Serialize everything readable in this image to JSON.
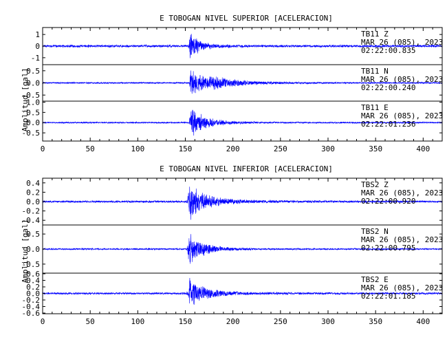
{
  "chart_data": [
    {
      "type": "line",
      "title": "E TOBOGAN NIVEL SUPERIOR [ACELERACION]",
      "ylabel": "Amplitud [gal]",
      "xlabel": "",
      "xlim": [
        0,
        420
      ],
      "x_ticks": [
        0,
        50,
        100,
        150,
        200,
        250,
        300,
        350,
        400
      ],
      "line_color": "#0000ff",
      "grid": false,
      "series": [
        {
          "name": "TB11   Z",
          "date": "MAR 26 (085), 2023",
          "time": "02:22:00.835",
          "ylim": [
            -1.6,
            1.6
          ],
          "y_ticks": [
            -1,
            0,
            1
          ],
          "noise": 0.12,
          "events": [
            {
              "t0": 154,
              "amp": 1.3,
              "decay": 7,
              "rise": 1.2
            },
            {
              "t0": 153,
              "amp": 0.35,
              "decay": 18,
              "rise": 1.5
            }
          ]
        },
        {
          "name": "TB11   N",
          "date": "MAR 26 (085), 2023",
          "time": "02:22:00.240",
          "ylim": [
            -0.75,
            0.75
          ],
          "y_ticks": [
            -0.5,
            0.0,
            0.5
          ],
          "noise": 0.035,
          "events": [
            {
              "t0": 154,
              "amp": 0.62,
              "decay": 22,
              "rise": 1.5
            },
            {
              "t0": 175,
              "amp": 0.12,
              "decay": 35,
              "rise": 5
            }
          ]
        },
        {
          "name": "TB11   E",
          "date": "MAR 26 (085), 2023",
          "time": "02:22:01.236",
          "ylim": [
            -0.9,
            1.05
          ],
          "y_ticks": [
            -0.5,
            0.0,
            0.5,
            1.0
          ],
          "noise": 0.04,
          "events": [
            {
              "t0": 154,
              "amp": 0.85,
              "decay": 9,
              "rise": 1.2
            },
            {
              "t0": 156,
              "amp": 0.3,
              "decay": 25,
              "rise": 3
            }
          ]
        }
      ]
    },
    {
      "type": "line",
      "title": "E TOBOGAN NIVEL INFERIOR [ACELERACION]",
      "ylabel": "Amplitud [gal]",
      "xlabel": "",
      "xlim": [
        0,
        420
      ],
      "x_ticks": [
        0,
        50,
        100,
        150,
        200,
        250,
        300,
        350,
        400
      ],
      "line_color": "#0000ff",
      "grid": false,
      "series": [
        {
          "name": "TBS2   Z",
          "date": "MAR 26 (085), 2023",
          "time": "02:22:00.920",
          "ylim": [
            -0.5,
            0.5
          ],
          "y_ticks": [
            -0.4,
            -0.2,
            0.0,
            0.2,
            0.4
          ],
          "noise": 0.025,
          "events": [
            {
              "t0": 152,
              "amp": 0.42,
              "decay": 14,
              "rise": 2
            },
            {
              "t0": 150,
              "amp": 0.1,
              "decay": 35,
              "rise": 8
            }
          ]
        },
        {
          "name": "TBS2   N",
          "date": "MAR 26 (085), 2023",
          "time": "02:22:00.795",
          "ylim": [
            -0.8,
            0.8
          ],
          "y_ticks": [
            -0.5,
            0.0,
            0.5
          ],
          "noise": 0.03,
          "events": [
            {
              "t0": 152,
              "amp": 0.55,
              "decay": 14,
              "rise": 2
            },
            {
              "t0": 150,
              "amp": 0.1,
              "decay": 30,
              "rise": 6
            }
          ]
        },
        {
          "name": "TBS2   E",
          "date": "MAR 26 (085), 2023",
          "time": "02:22:01.185",
          "ylim": [
            -0.62,
            0.62
          ],
          "y_ticks": [
            -0.6,
            -0.4,
            -0.2,
            0.0,
            0.2,
            0.4,
            0.6
          ],
          "noise": 0.035,
          "events": [
            {
              "t0": 153,
              "amp": 0.5,
              "decay": 12,
              "rise": 1.8
            },
            {
              "t0": 150,
              "amp": 0.12,
              "decay": 35,
              "rise": 8
            }
          ]
        }
      ]
    }
  ]
}
